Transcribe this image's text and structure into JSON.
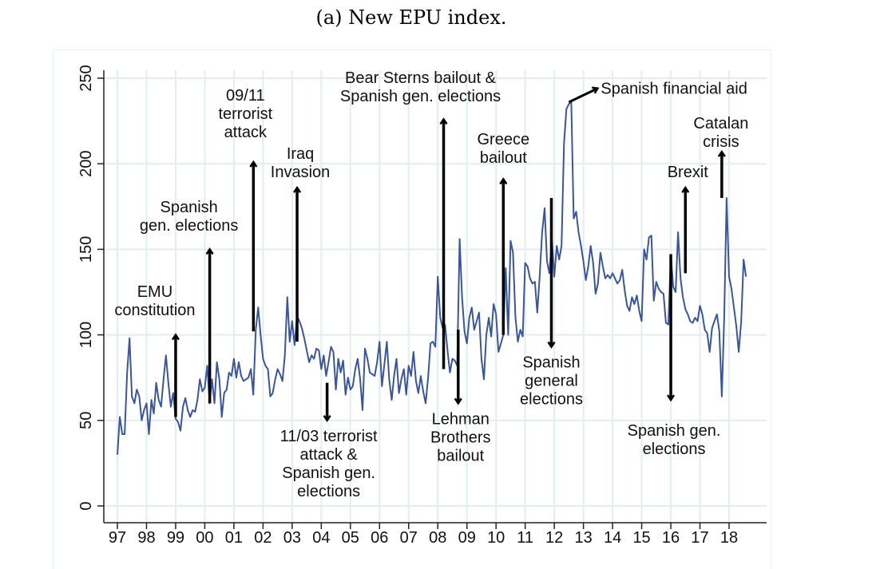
{
  "caption": "(a) New EPU index.",
  "chart_data": {
    "type": "line",
    "title": "",
    "xlabel": "",
    "ylabel": "",
    "ylim": [
      0,
      250
    ],
    "xlim": [
      1997.0,
      2018.5
    ],
    "yticks": [
      0,
      50,
      100,
      150,
      200,
      250
    ],
    "xticks": [
      {
        "value": 1997,
        "label": "97"
      },
      {
        "value": 1998,
        "label": "98"
      },
      {
        "value": 1999,
        "label": "99"
      },
      {
        "value": 2000,
        "label": "00"
      },
      {
        "value": 2001,
        "label": "01"
      },
      {
        "value": 2002,
        "label": "02"
      },
      {
        "value": 2003,
        "label": "03"
      },
      {
        "value": 2004,
        "label": "04"
      },
      {
        "value": 2005,
        "label": "05"
      },
      {
        "value": 2006,
        "label": "06"
      },
      {
        "value": 2007,
        "label": "07"
      },
      {
        "value": 2008,
        "label": "08"
      },
      {
        "value": 2009,
        "label": "09"
      },
      {
        "value": 2010,
        "label": "10"
      },
      {
        "value": 2011,
        "label": "11"
      },
      {
        "value": 2012,
        "label": "12"
      },
      {
        "value": 2013,
        "label": "13"
      },
      {
        "value": 2014,
        "label": "14"
      },
      {
        "value": 2015,
        "label": "15"
      },
      {
        "value": 2016,
        "label": "16"
      },
      {
        "value": 2017,
        "label": "17"
      },
      {
        "value": 2018,
        "label": "18"
      }
    ],
    "grid": true,
    "series": [
      {
        "name": "EPU index",
        "color": "#3a55a0",
        "start": 1997.0,
        "step": 0.08333,
        "values": [
          30,
          52,
          42,
          42,
          78,
          98,
          64,
          60,
          68,
          64,
          50,
          56,
          60,
          42,
          62,
          54,
          72,
          62,
          58,
          74,
          88,
          72,
          58,
          66,
          51,
          49,
          44,
          58,
          63,
          56,
          52,
          56,
          55,
          62,
          74,
          67,
          69,
          82,
          60,
          74,
          60,
          84,
          74,
          52,
          66,
          68,
          78,
          76,
          86,
          75,
          84,
          76,
          73,
          74,
          75,
          80,
          65,
          103,
          116,
          100,
          86,
          82,
          80,
          64,
          66,
          74,
          80,
          77,
          73,
          88,
          122,
          96,
          108,
          94,
          111,
          108,
          104,
          98,
          91,
          84,
          88,
          86,
          92,
          91,
          80,
          88,
          76,
          84,
          93,
          90,
          68,
          86,
          78,
          85,
          65,
          75,
          68,
          70,
          80,
          86,
          74,
          56,
          92,
          86,
          78,
          77,
          76,
          84,
          96,
          70,
          83,
          96,
          74,
          62,
          76,
          86,
          66,
          74,
          80,
          65,
          82,
          76,
          90,
          73,
          66,
          76,
          67,
          60,
          75,
          95,
          96,
          93,
          134,
          110,
          104,
          106,
          91,
          78,
          86,
          85,
          82,
          156,
          122,
          102,
          95,
          110,
          116,
          103,
          108,
          113,
          86,
          74,
          100,
          110,
          99,
          118,
          112,
          90,
          95,
          100,
          139,
          100,
          155,
          148,
          110,
          96,
          103,
          99,
          142,
          140,
          133,
          130,
          131,
          113,
          135,
          160,
          174,
          143,
          136,
          156,
          134,
          152,
          144,
          152,
          212,
          232,
          235,
          236,
          168,
          172,
          160,
          152,
          143,
          132,
          140,
          152,
          142,
          124,
          130,
          148,
          140,
          133,
          135,
          133,
          136,
          133,
          130,
          132,
          138,
          126,
          117,
          114,
          122,
          118,
          123,
          114,
          108,
          150,
          144,
          157,
          158,
          120,
          131,
          127,
          125,
          124,
          107,
          106,
          147,
          128,
          125,
          160,
          133,
          122,
          115,
          112,
          108,
          107,
          110,
          108,
          117,
          112,
          103,
          101,
          90,
          104,
          108,
          112,
          102,
          64,
          110,
          180,
          134,
          127,
          116,
          105,
          90,
          108,
          144,
          134
        ]
      }
    ],
    "annotations": [
      {
        "label": [
          "EMU",
          "constitution"
        ],
        "x": 1999.0,
        "from": 52,
        "to": 100,
        "direction": "up"
      },
      {
        "label": [
          "Spanish",
          "gen. elections"
        ],
        "x": 2000.17,
        "from": 60,
        "to": 150,
        "direction": "up"
      },
      {
        "label": [
          "09/11",
          "terrorist",
          "attack"
        ],
        "x": 2001.67,
        "from": 102,
        "to": 201,
        "direction": "up"
      },
      {
        "label": [
          "Iraq",
          "Invasion"
        ],
        "x": 2003.17,
        "from": 96,
        "to": 186,
        "direction": "up"
      },
      {
        "label": [
          "11/03 terrorist",
          "attack &",
          "Spanish gen.",
          "elections"
        ],
        "x": 2004.2,
        "from": 72,
        "to": 50,
        "direction": "down"
      },
      {
        "label": [
          "Bear Sterns bailout &",
          "Spanish gen. elections"
        ],
        "x": 2008.2,
        "from": 80,
        "to": 226,
        "direction": "up"
      },
      {
        "label": [
          "Lehman",
          "Brothers",
          "bailout"
        ],
        "x": 2008.7,
        "from": 103,
        "to": 60,
        "direction": "down"
      },
      {
        "label": [
          "Greece",
          "bailout"
        ],
        "x": 2010.25,
        "from": 100,
        "to": 191,
        "direction": "up"
      },
      {
        "label": [
          "Spanish",
          "general",
          "elections"
        ],
        "x": 2011.9,
        "from": 180,
        "to": 93,
        "direction": "down"
      },
      {
        "label": [
          "Spanish financial aid"
        ],
        "x": 2012.5,
        "from": 236,
        "to": 245,
        "direction": "right"
      },
      {
        "label": [
          "Brexit"
        ],
        "x": 2016.5,
        "from": 136,
        "to": 186,
        "direction": "up"
      },
      {
        "label": [
          "Spanish gen.",
          "elections"
        ],
        "x": 2016.0,
        "from": 147,
        "to": 62,
        "direction": "down"
      },
      {
        "label": [
          "Catalan",
          "crisis"
        ],
        "x": 2017.75,
        "from": 180,
        "to": 207,
        "direction": "up"
      }
    ]
  }
}
